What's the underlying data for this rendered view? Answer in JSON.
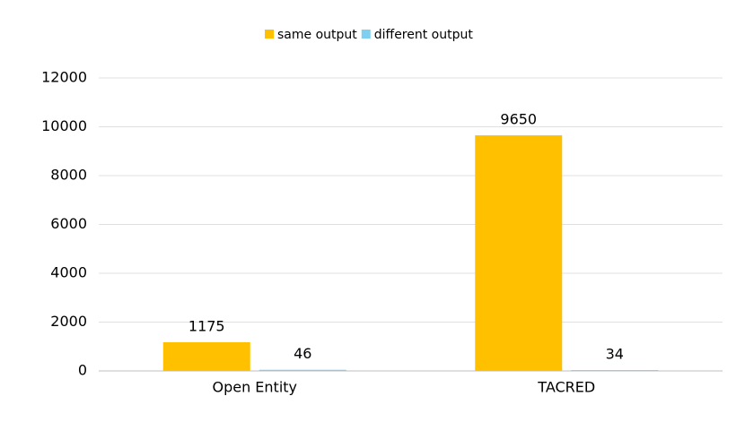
{
  "chart_data": {
    "type": "bar",
    "categories": [
      "Open Entity",
      "TACRED"
    ],
    "series": [
      {
        "name": "same output",
        "color": "#FFC000",
        "values": [
          1175,
          9650
        ]
      },
      {
        "name": "different output",
        "color": "#7ECFF0",
        "values": [
          46,
          34
        ]
      }
    ],
    "ylim": [
      0,
      12000
    ],
    "yticks": [
      0,
      2000,
      4000,
      6000,
      8000,
      10000,
      12000
    ],
    "grid": true,
    "legend": "top"
  }
}
